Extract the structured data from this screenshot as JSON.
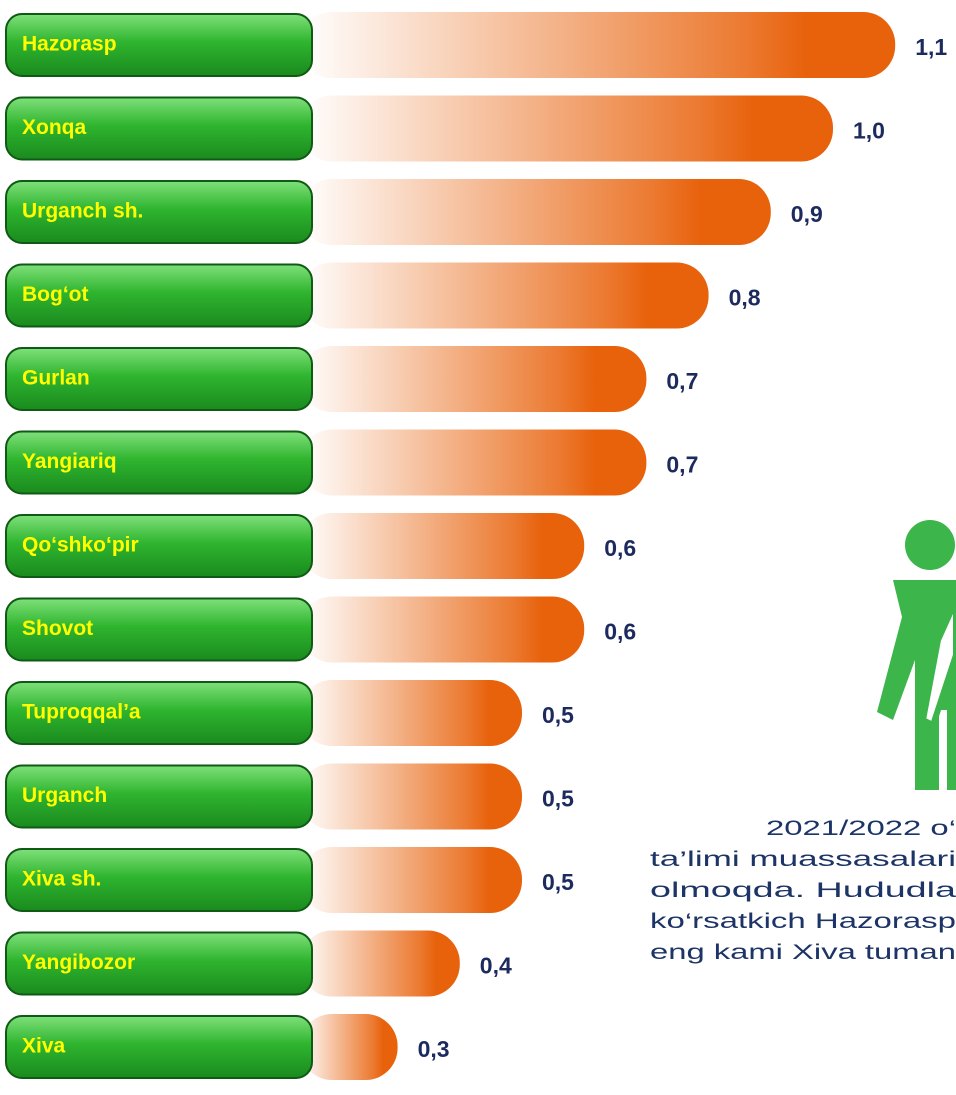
{
  "chart_data": {
    "type": "barh",
    "categories": [
      "Hazorasp",
      "Xonqa",
      "Urganch sh.",
      "Bog‘ot",
      "Gurlan",
      "Yangiariq",
      "Qo‘shko‘pir",
      "Shovot",
      "Tuproqqal’a",
      "Urganch",
      "Xiva sh.",
      "Yangibozor",
      "Xiva"
    ],
    "values": [
      1.1,
      1.0,
      0.9,
      0.8,
      0.7,
      0.7,
      0.6,
      0.6,
      0.5,
      0.5,
      0.5,
      0.4,
      0.3
    ],
    "value_labels": [
      "1,1",
      "1,0",
      "0,9",
      "0,8",
      "0,7",
      "0,7",
      "0,6",
      "0,6",
      "0,5",
      "0,5",
      "0,5",
      "0,4",
      "0,3"
    ],
    "color": "#e8620c",
    "annotations": [
      "2021/2022 o‘",
      "ta’limi muassasalari",
      "olmoqda. Hududla",
      "ko‘rsatkich Hazorasp",
      "eng kami Xiva tuman"
    ]
  }
}
